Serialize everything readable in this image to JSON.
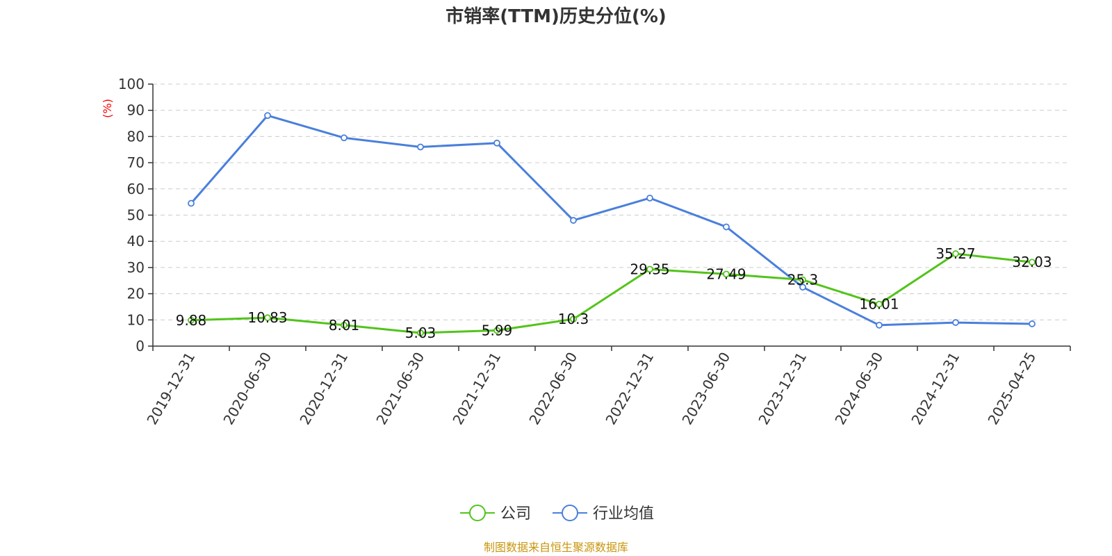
{
  "chart_data": {
    "type": "line",
    "title": "市销率(TTM)历史分位(%)",
    "ylabel": "(%)",
    "ylim": [
      0,
      100
    ],
    "yticks": [
      0,
      10,
      20,
      30,
      40,
      50,
      60,
      70,
      80,
      90,
      100
    ],
    "grid": true,
    "legend_position": "bottom",
    "categories": [
      "2019-12-31",
      "2020-06-30",
      "2020-12-31",
      "2021-06-30",
      "2021-12-31",
      "2022-06-30",
      "2022-12-31",
      "2023-06-30",
      "2023-12-31",
      "2024-06-30",
      "2024-12-31",
      "2025-04-25"
    ],
    "series": [
      {
        "name": "公司",
        "color": "#52c41a",
        "values": [
          9.88,
          10.83,
          8.01,
          5.03,
          5.99,
          10.3,
          29.35,
          27.49,
          25.3,
          16.01,
          35.27,
          32.03
        ],
        "labels": [
          "9.88",
          "10.83",
          "8.01",
          "5.03",
          "5.99",
          "10.3",
          "29.35",
          "27.49",
          "25.3",
          "16.01",
          "35.27",
          "32.03"
        ]
      },
      {
        "name": "行业均值",
        "color": "#4a7fdc",
        "values": [
          54.5,
          88,
          79.5,
          76,
          77.5,
          48,
          56.5,
          45.5,
          22.5,
          8,
          9,
          8.5
        ]
      }
    ]
  },
  "footer": {
    "source": "制图数据来自恒生聚源数据库"
  }
}
